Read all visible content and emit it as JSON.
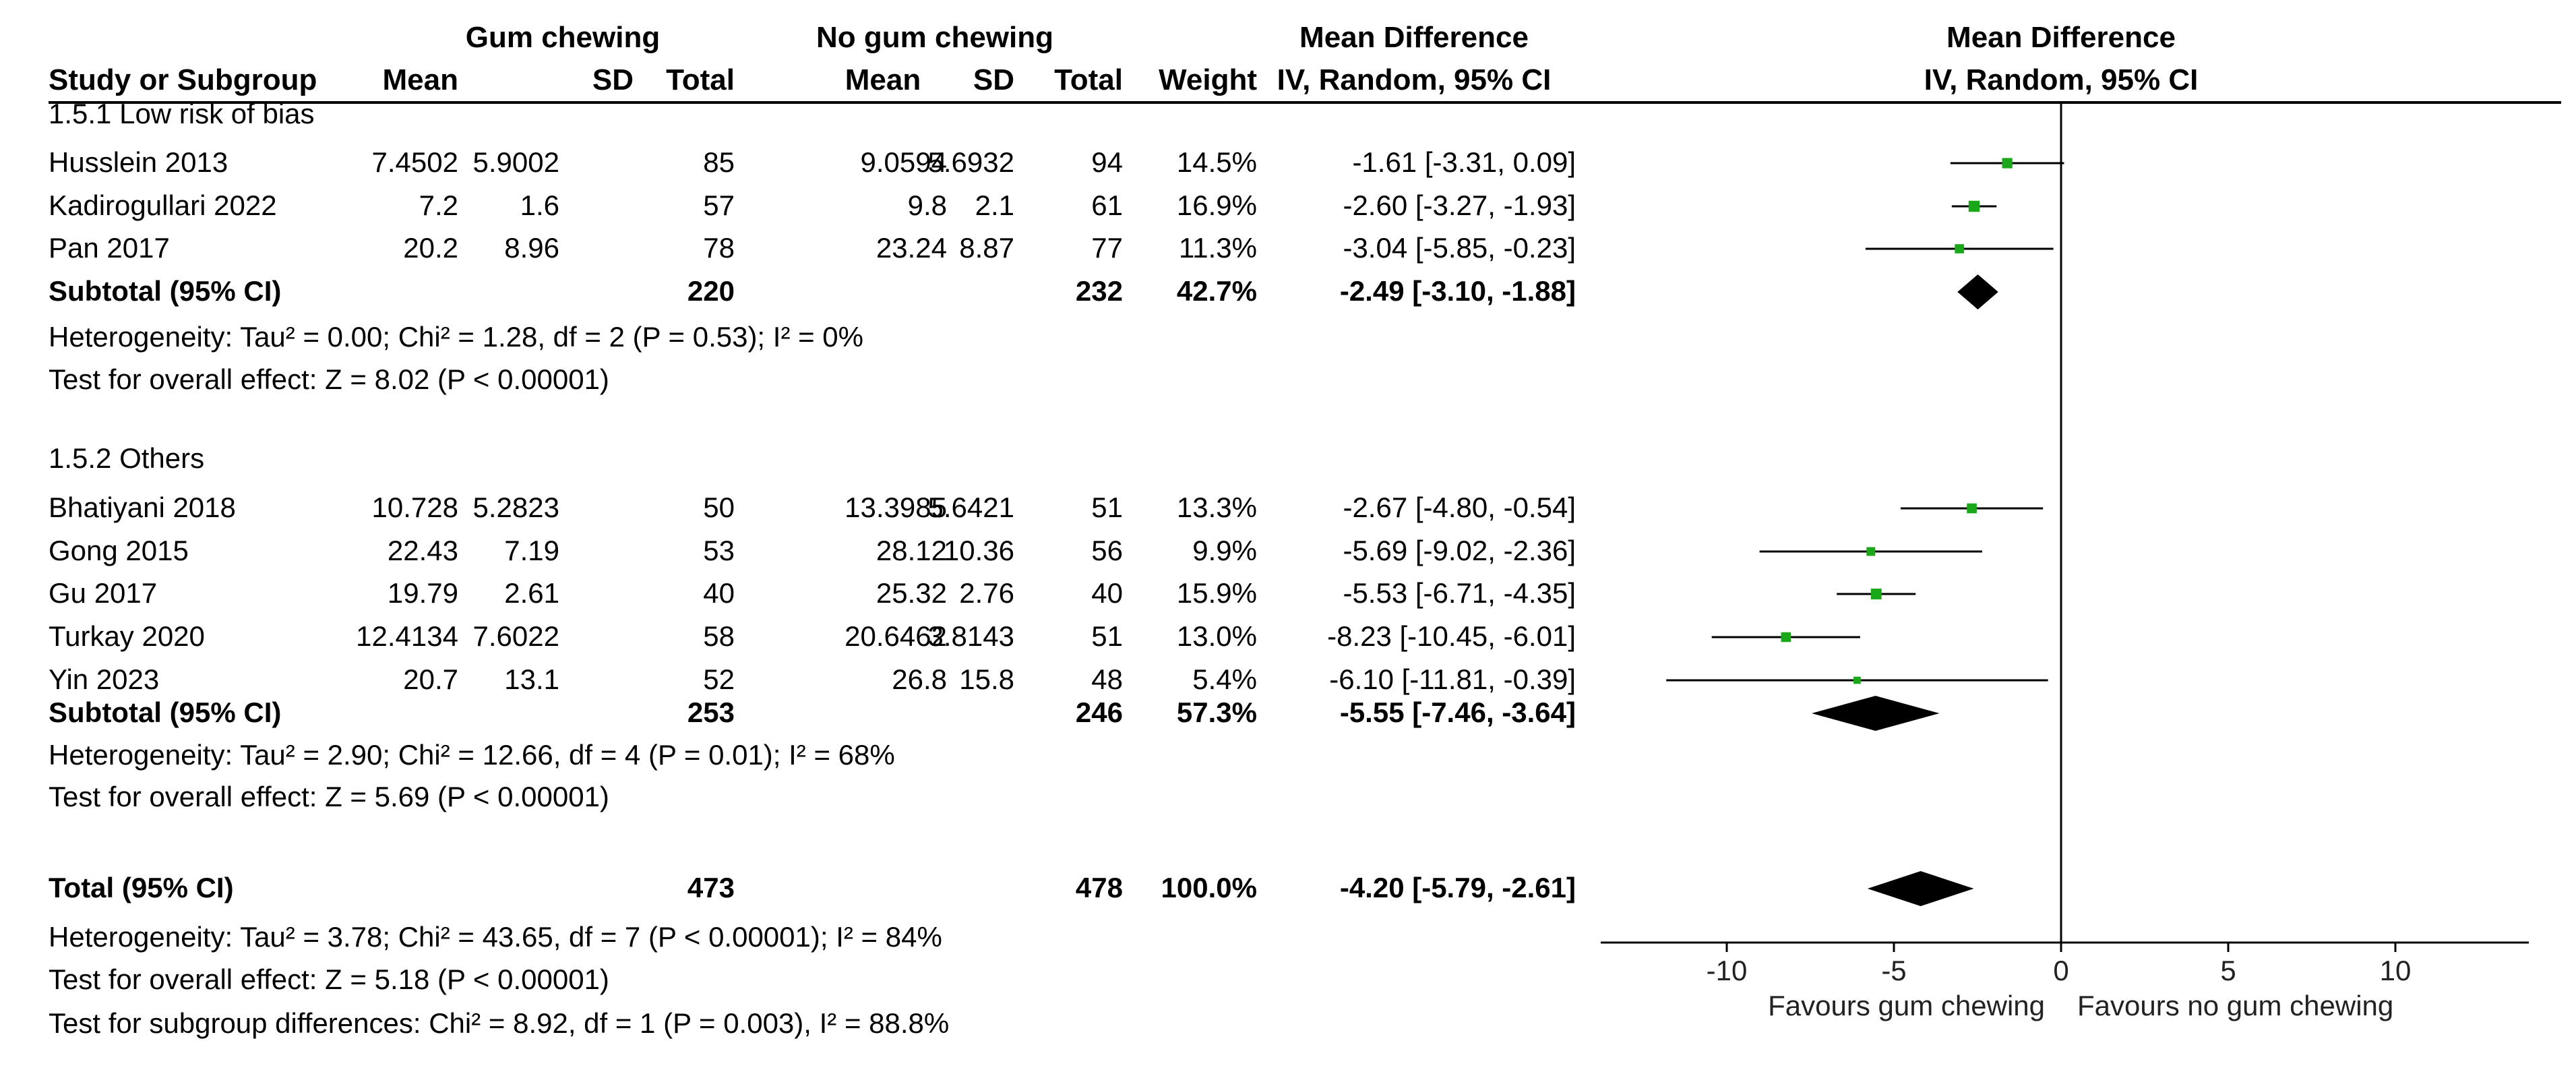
{
  "headers": {
    "group1": "Gum chewing",
    "group2": "No gum chewing",
    "md_table": "Mean Difference",
    "md_plot": "Mean Difference",
    "study_col": "Study or Subgroup",
    "mean": "Mean",
    "sd": "SD",
    "total": "Total",
    "weight": "Weight",
    "method_table": "IV, Random, 95% CI",
    "method_plot": "IV, Random, 95% CI"
  },
  "colors": {
    "square": "#1aa81a",
    "line": "#000000"
  },
  "subgroups": [
    {
      "title": "1.5.1 Low risk of bias",
      "studies": [
        {
          "name": "Husslein 2013",
          "m1": "7.4502",
          "sd1": "5.9002",
          "n1": "85",
          "m2": "9.0594",
          "sd2": "5.6932",
          "n2": "94",
          "weight": "14.5%",
          "ci": "-1.61 [-3.31, 0.09]",
          "md": -1.61,
          "lo": -3.31,
          "hi": 0.09,
          "w": 14.5
        },
        {
          "name": "Kadirogullari 2022",
          "m1": "7.2",
          "sd1": "1.6",
          "n1": "57",
          "m2": "9.8",
          "sd2": "2.1",
          "n2": "61",
          "weight": "16.9%",
          "ci": "-2.60 [-3.27, -1.93]",
          "md": -2.6,
          "lo": -3.27,
          "hi": -1.93,
          "w": 16.9
        },
        {
          "name": "Pan 2017",
          "m1": "20.2",
          "sd1": "8.96",
          "n1": "78",
          "m2": "23.24",
          "sd2": "8.87",
          "n2": "77",
          "weight": "11.3%",
          "ci": "-3.04 [-5.85, -0.23]",
          "md": -3.04,
          "lo": -5.85,
          "hi": -0.23,
          "w": 11.3
        }
      ],
      "subtotal": {
        "label": "Subtotal (95% CI)",
        "n1": "220",
        "n2": "232",
        "weight": "42.7%",
        "ci": "-2.49 [-3.10, -1.88]",
        "md": -2.49,
        "lo": -3.1,
        "hi": -1.88
      },
      "heterogeneity": "Heterogeneity: Tau² = 0.00; Chi² = 1.28, df = 2 (P = 0.53); I² = 0%",
      "overall": "Test for overall effect: Z = 8.02 (P < 0.00001)"
    },
    {
      "title": "1.5.2 Others",
      "studies": [
        {
          "name": "Bhatiyani 2018",
          "m1": "10.728",
          "sd1": "5.2823",
          "n1": "50",
          "m2": "13.3985",
          "sd2": "5.6421",
          "n2": "51",
          "weight": "13.3%",
          "ci": "-2.67 [-4.80, -0.54]",
          "md": -2.67,
          "lo": -4.8,
          "hi": -0.54,
          "w": 13.3
        },
        {
          "name": "Gong 2015",
          "m1": "22.43",
          "sd1": "7.19",
          "n1": "53",
          "m2": "28.12",
          "sd2": "10.36",
          "n2": "56",
          "weight": "9.9%",
          "ci": "-5.69 [-9.02, -2.36]",
          "md": -5.69,
          "lo": -9.02,
          "hi": -2.36,
          "w": 9.9
        },
        {
          "name": "Gu 2017",
          "m1": "19.79",
          "sd1": "2.61",
          "n1": "40",
          "m2": "25.32",
          "sd2": "2.76",
          "n2": "40",
          "weight": "15.9%",
          "ci": "-5.53 [-6.71, -4.35]",
          "md": -5.53,
          "lo": -6.71,
          "hi": -4.35,
          "w": 15.9
        },
        {
          "name": "Turkay 2020",
          "m1": "12.4134",
          "sd1": "7.6022",
          "n1": "58",
          "m2": "20.6462",
          "sd2": "3.8143",
          "n2": "51",
          "weight": "13.0%",
          "ci": "-8.23 [-10.45, -6.01]",
          "md": -8.23,
          "lo": -10.45,
          "hi": -6.01,
          "w": 13.0
        },
        {
          "name": "Yin 2023",
          "m1": "20.7",
          "sd1": "13.1",
          "n1": "52",
          "m2": "26.8",
          "sd2": "15.8",
          "n2": "48",
          "weight": "5.4%",
          "ci": "-6.10 [-11.81, -0.39]",
          "md": -6.1,
          "lo": -11.81,
          "hi": -0.39,
          "w": 5.4
        }
      ],
      "subtotal": {
        "label": "Subtotal (95% CI)",
        "n1": "253",
        "n2": "246",
        "weight": "57.3%",
        "ci": "-5.55 [-7.46, -3.64]",
        "md": -5.55,
        "lo": -7.46,
        "hi": -3.64
      },
      "heterogeneity": "Heterogeneity: Tau² = 2.90; Chi² = 12.66, df = 4 (P = 0.01); I² = 68%",
      "overall": "Test for overall effect: Z = 5.69 (P < 0.00001)"
    }
  ],
  "total": {
    "label": "Total (95% CI)",
    "n1": "473",
    "n2": "478",
    "weight": "100.0%",
    "ci": "-4.20 [-5.79, -2.61]",
    "md": -4.2,
    "lo": -5.79,
    "hi": -2.61
  },
  "total_heterogeneity": "Heterogeneity: Tau² = 3.78; Chi² = 43.65, df = 7 (P < 0.00001); I² = 84%",
  "total_overall": "Test for overall effect: Z = 5.18 (P < 0.00001)",
  "subgroup_diff": "Test for subgroup differences: Chi² = 8.92, df = 1 (P = 0.003), I² = 88.8%",
  "chart_data": {
    "type": "forest",
    "title": "Mean Difference",
    "xlabel_left": "Favours gum chewing",
    "xlabel_right": "Favours no gum chewing",
    "xlim": [
      -14,
      14
    ],
    "ticks": [
      -10,
      -5,
      0,
      5,
      10
    ],
    "tick_labels": [
      "-10",
      "-5",
      "0",
      "5",
      "10"
    ]
  }
}
